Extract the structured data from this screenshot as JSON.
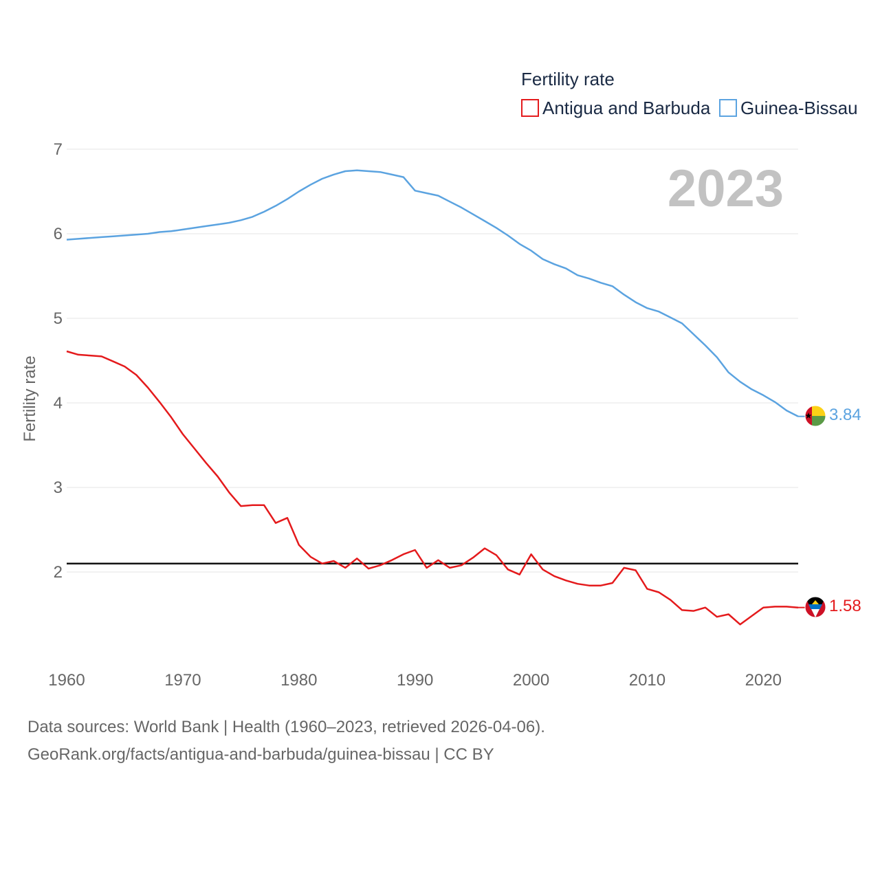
{
  "chart_data": {
    "type": "line",
    "title": "Fertility rate",
    "xlabel": "",
    "ylabel": "Fertility rate",
    "year_label": "2023",
    "xlim": [
      1960,
      2023
    ],
    "ylim": [
      1,
      7
    ],
    "x_ticks": [
      1960,
      1970,
      1980,
      1990,
      2000,
      2010,
      2020
    ],
    "y_ticks": [
      2,
      3,
      4,
      5,
      6,
      7
    ],
    "reference_line": 2.1,
    "legend_position": "top-right",
    "x": [
      1960,
      1961,
      1962,
      1963,
      1964,
      1965,
      1966,
      1967,
      1968,
      1969,
      1970,
      1971,
      1972,
      1973,
      1974,
      1975,
      1976,
      1977,
      1978,
      1979,
      1980,
      1981,
      1982,
      1983,
      1984,
      1985,
      1986,
      1987,
      1988,
      1989,
      1990,
      1991,
      1992,
      1993,
      1994,
      1995,
      1996,
      1997,
      1998,
      1999,
      2000,
      2001,
      2002,
      2003,
      2004,
      2005,
      2006,
      2007,
      2008,
      2009,
      2010,
      2011,
      2012,
      2013,
      2014,
      2015,
      2016,
      2017,
      2018,
      2019,
      2020,
      2021,
      2022,
      2023
    ],
    "series": [
      {
        "name": "Antigua and Barbuda",
        "color": "#e41a1c",
        "end_label": "1.58",
        "flag_icon": "antigua-and-barbuda-flag-icon",
        "values": [
          4.61,
          4.57,
          4.56,
          4.55,
          4.49,
          4.43,
          4.33,
          4.18,
          4.01,
          3.83,
          3.63,
          3.46,
          3.29,
          3.13,
          2.94,
          2.78,
          2.79,
          2.79,
          2.58,
          2.64,
          2.32,
          2.18,
          2.1,
          2.13,
          2.05,
          2.16,
          2.04,
          2.08,
          2.14,
          2.21,
          2.26,
          2.05,
          2.14,
          2.05,
          2.08,
          2.17,
          2.28,
          2.2,
          2.03,
          1.97,
          2.21,
          2.03,
          1.95,
          1.9,
          1.86,
          1.84,
          1.84,
          1.87,
          2.05,
          2.02,
          1.8,
          1.76,
          1.67,
          1.55,
          1.54,
          1.58,
          1.47,
          1.5,
          1.38,
          1.48,
          1.58,
          1.59,
          1.59,
          1.58
        ]
      },
      {
        "name": "Guinea-Bissau",
        "color": "#5ba3e0",
        "end_label": "3.84",
        "flag_icon": "guinea-bissau-flag-icon",
        "values": [
          5.93,
          5.94,
          5.95,
          5.96,
          5.97,
          5.98,
          5.99,
          6.0,
          6.02,
          6.03,
          6.05,
          6.07,
          6.09,
          6.11,
          6.13,
          6.16,
          6.2,
          6.26,
          6.33,
          6.41,
          6.5,
          6.58,
          6.65,
          6.7,
          6.74,
          6.75,
          6.74,
          6.73,
          6.7,
          6.67,
          6.51,
          6.48,
          6.45,
          6.38,
          6.31,
          6.23,
          6.15,
          6.07,
          5.98,
          5.88,
          5.8,
          5.7,
          5.64,
          5.59,
          5.51,
          5.47,
          5.42,
          5.38,
          5.28,
          5.19,
          5.12,
          5.08,
          5.01,
          4.94,
          4.81,
          4.68,
          4.54,
          4.36,
          4.25,
          4.16,
          4.09,
          4.01,
          3.91,
          3.84
        ]
      }
    ]
  },
  "footer": {
    "source_line": "Data sources: World Bank | Health (1960–2023, retrieved 2026-04-06).",
    "url_line": "GeoRank.org/facts/antigua-and-barbuda/guinea-bissau | CC BY"
  }
}
